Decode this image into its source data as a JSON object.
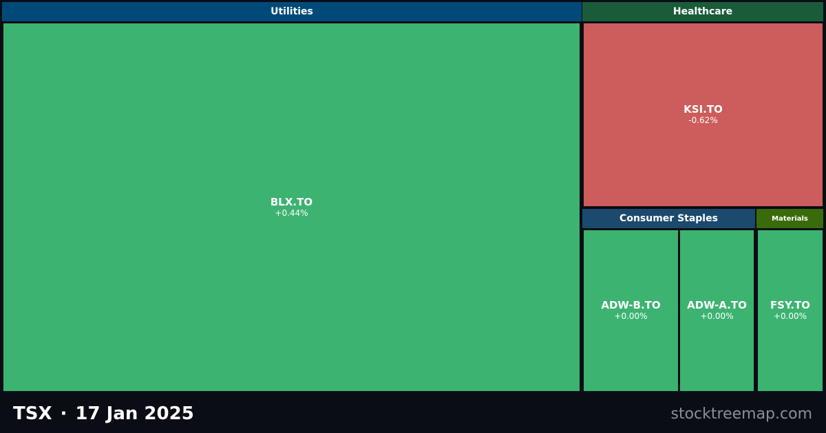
{
  "chart_data": {
    "type": "treemap",
    "sectors": [
      {
        "name": "Utilities",
        "header_color": "#004a7a",
        "stocks": [
          {
            "ticker": "BLX.TO",
            "change": "+0.44%",
            "value_pct": 0.44,
            "color": "#3cb371"
          }
        ]
      },
      {
        "name": "Healthcare",
        "header_color": "#1a5c3a",
        "stocks": [
          {
            "ticker": "KSI.TO",
            "change": "-0.62%",
            "value_pct": -0.62,
            "color": "#cd5c5c"
          }
        ]
      },
      {
        "name": "Consumer Staples",
        "header_color": "#1c4a6e",
        "stocks": [
          {
            "ticker": "ADW-B.TO",
            "change": "+0.00%",
            "value_pct": 0.0,
            "color": "#3cb371"
          },
          {
            "ticker": "ADW-A.TO",
            "change": "+0.00%",
            "value_pct": 0.0,
            "color": "#3cb371"
          }
        ]
      },
      {
        "name": "Materials",
        "header_color": "#3a6b0a",
        "stocks": [
          {
            "ticker": "FSY.TO",
            "change": "+0.00%",
            "value_pct": 0.0,
            "color": "#3cb371"
          }
        ]
      }
    ]
  },
  "footer": {
    "exchange": "TSX",
    "separator": "·",
    "date": "17 Jan 2025",
    "site": "stocktreemap.com"
  }
}
